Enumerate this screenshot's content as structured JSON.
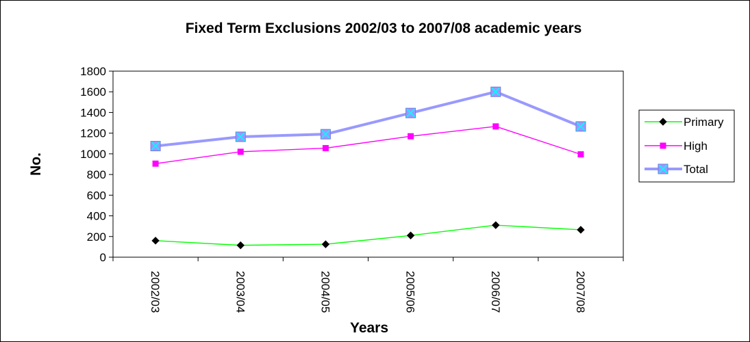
{
  "chart_data": {
    "type": "line",
    "title": "Fixed Term Exclusions 2002/03 to 2007/08 academic years",
    "xlabel": "Years",
    "ylabel": "No.",
    "categories": [
      "2002/03",
      "2003/04",
      "2004/05",
      "2005/06",
      "2006/07",
      "2007/08"
    ],
    "ylim": [
      0,
      1800
    ],
    "yticks": [
      0,
      200,
      400,
      600,
      800,
      1000,
      1200,
      1400,
      1600,
      1800
    ],
    "grid": false,
    "legend_position": "right",
    "series": [
      {
        "name": "Primary",
        "values": [
          160,
          115,
          125,
          210,
          310,
          265
        ],
        "color": "#00ff00",
        "marker": "diamond",
        "marker_color": "#000000"
      },
      {
        "name": "High",
        "values": [
          905,
          1020,
          1055,
          1170,
          1265,
          995
        ],
        "color": "#ff00ff",
        "marker": "square",
        "marker_color": "#ff00ff"
      },
      {
        "name": "Total",
        "values": [
          1075,
          1165,
          1190,
          1395,
          1600,
          1265
        ],
        "color": "#9999ff",
        "marker": "x-square",
        "marker_color": "#9999ff"
      }
    ]
  }
}
